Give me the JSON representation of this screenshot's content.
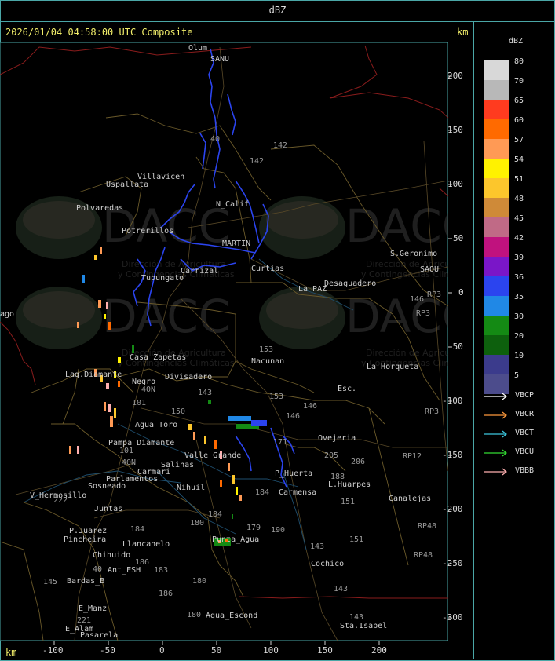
{
  "header": {
    "title": "dBZ"
  },
  "map_header": {
    "timestamp": "2026/01/04 04:58:00 UTC Composite",
    "unit_top": "km",
    "unit_bottom": "km"
  },
  "axes": {
    "y_ticks": [
      "200",
      "150",
      "100",
      "50",
      "0",
      "-50",
      "-100",
      "-150",
      "-200",
      "-250",
      "-300"
    ],
    "x_ticks": [
      "-100",
      "-50",
      "0",
      "50",
      "100",
      "150",
      "200"
    ]
  },
  "legend": {
    "title": "dBZ",
    "items": [
      {
        "label": "80",
        "color": "#d8d8d8"
      },
      {
        "label": "70",
        "color": "#b8b8b8"
      },
      {
        "label": "65",
        "color": "#ff3b1f"
      },
      {
        "label": "60",
        "color": "#ff6a00"
      },
      {
        "label": "57",
        "color": "#ff9a55"
      },
      {
        "label": "54",
        "color": "#fff200"
      },
      {
        "label": "51",
        "color": "#fcc62c"
      },
      {
        "label": "48",
        "color": "#cf8a38"
      },
      {
        "label": "45",
        "color": "#c06a86"
      },
      {
        "label": "42",
        "color": "#c0127e"
      },
      {
        "label": "39",
        "color": "#7a16c8"
      },
      {
        "label": "36",
        "color": "#2b44ef"
      },
      {
        "label": "35",
        "color": "#2088e6"
      },
      {
        "label": "30",
        "color": "#148a14"
      },
      {
        "label": "20",
        "color": "#0d600d"
      },
      {
        "label": "10",
        "color": "#3b3b8c"
      },
      {
        "label": "5",
        "color": "#4c4c8c"
      }
    ],
    "radars": [
      {
        "name": "VBCP",
        "color": "#ffffff"
      },
      {
        "name": "VBCR",
        "color": "#ff9a3c"
      },
      {
        "name": "VBCT",
        "color": "#3cc8e0"
      },
      {
        "name": "VBCU",
        "color": "#33dd33"
      },
      {
        "name": "VBBB",
        "color": "#ffb0b0"
      }
    ]
  },
  "watermarks": [
    {
      "brand": "DACC",
      "line1": "Dirección de Agricultura",
      "line2": "y Contingencias Climáticas"
    },
    {
      "brand": "DACC",
      "line1": "Dirección de Agricultura",
      "line2": "y Contingencias Climáticas"
    },
    {
      "brand": "DACC",
      "line1": "Dirección de Agricultura",
      "line2": "y Contingencias Climáticas"
    },
    {
      "brand": "DACC",
      "line1": "Dirección de Agricultura",
      "line2": "y Contingencias Climáticas"
    }
  ],
  "map": {
    "places": [
      "Olum",
      "SANU",
      "Villavicen",
      "Uspallata",
      "Polvaredas",
      "Potrerillos",
      "N_Calif",
      "MARTIN",
      "Carrizal",
      "Curtias",
      "S.Geronimo",
      "SAOU",
      "Desaguadero",
      "La PAZ",
      "Tupungato",
      "Casa Zapetas",
      "Lag.Diamante",
      "Divisadero",
      "Nacunan",
      "La Horqueta",
      "Esc.",
      "Negro",
      "Agua Toro",
      "Pampa_Diamante",
      "Valle Grande",
      "Salinas",
      "Carmari",
      "Parlamentos",
      "Sosneado",
      "V_Hermosillo",
      "Nihuil",
      "P_Huerta",
      "Carmensa",
      "L.Huarpes",
      "Ovejeria",
      "Canalejas",
      "Juntas",
      "P.Juarez",
      "Pincheira",
      "Llancanelo",
      "Chihuido",
      "Ant_ESH",
      "Punta_Agua",
      "Cochico",
      "Bardas_B",
      "E_Manz",
      "E_Alam",
      "Pasarela",
      "Agua_Escond",
      "Sta.Isabel",
      "ago"
    ],
    "routes": [
      "40",
      "142",
      "153",
      "143",
      "146",
      "150",
      "101",
      "171",
      "205",
      "206",
      "188",
      "151",
      "184",
      "179",
      "190",
      "180",
      "186",
      "183",
      "221",
      "222",
      "145",
      "RP3",
      "RP12",
      "RP48",
      "146",
      "40N"
    ]
  }
}
